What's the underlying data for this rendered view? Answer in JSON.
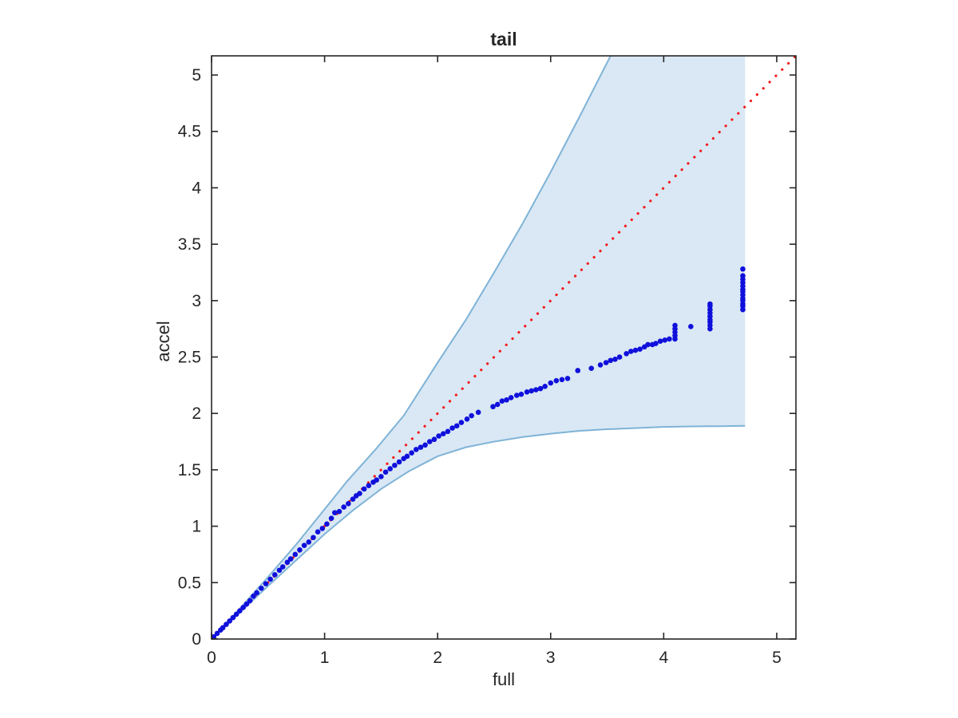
{
  "figure": {
    "background": "#FFFFFF"
  },
  "chart_data": {
    "type": "scatter",
    "title": "tail",
    "xlabel": "full",
    "ylabel": "accel",
    "xlim": [
      0,
      5.17
    ],
    "ylim": [
      0,
      5.17
    ],
    "x_ticks": [
      0,
      1,
      2,
      3,
      4,
      5
    ],
    "y_ticks": [
      0,
      0.5,
      1,
      1.5,
      2,
      2.5,
      3,
      3.5,
      4,
      4.5,
      5
    ],
    "grid": false,
    "legend": "none",
    "colors": {
      "band_fill": "#D9E8F4",
      "band_edge": "#7FB3D7",
      "scatter": "#1010DC",
      "reference_line": "#F21B1B",
      "axis": "#262626"
    },
    "series": [
      {
        "name": "qq-scatter",
        "type": "scatter",
        "marker": "dot",
        "color": "#1010DC",
        "points": [
          [
            0.02,
            0.02
          ],
          [
            0.05,
            0.05
          ],
          [
            0.08,
            0.08
          ],
          [
            0.1,
            0.1
          ],
          [
            0.13,
            0.13
          ],
          [
            0.16,
            0.16
          ],
          [
            0.19,
            0.19
          ],
          [
            0.22,
            0.22
          ],
          [
            0.25,
            0.25
          ],
          [
            0.28,
            0.28
          ],
          [
            0.31,
            0.31
          ],
          [
            0.34,
            0.34
          ],
          [
            0.37,
            0.38
          ],
          [
            0.4,
            0.41
          ],
          [
            0.44,
            0.45
          ],
          [
            0.48,
            0.49
          ],
          [
            0.52,
            0.53
          ],
          [
            0.56,
            0.57
          ],
          [
            0.6,
            0.61
          ],
          [
            0.63,
            0.64
          ],
          [
            0.67,
            0.68
          ],
          [
            0.7,
            0.71
          ],
          [
            0.74,
            0.75
          ],
          [
            0.78,
            0.79
          ],
          [
            0.82,
            0.83
          ],
          [
            0.86,
            0.86
          ],
          [
            0.9,
            0.9
          ],
          [
            0.94,
            0.95
          ],
          [
            0.98,
            0.98
          ],
          [
            1.02,
            1.02
          ],
          [
            1.06,
            1.07
          ],
          [
            1.09,
            1.12
          ],
          [
            1.13,
            1.13
          ],
          [
            1.17,
            1.17
          ],
          [
            1.21,
            1.2
          ],
          [
            1.25,
            1.24
          ],
          [
            1.28,
            1.27
          ],
          [
            1.31,
            1.29
          ],
          [
            1.35,
            1.33
          ],
          [
            1.39,
            1.36
          ],
          [
            1.43,
            1.39
          ],
          [
            1.46,
            1.41
          ],
          [
            1.5,
            1.44
          ],
          [
            1.54,
            1.48
          ],
          [
            1.58,
            1.51
          ],
          [
            1.62,
            1.54
          ],
          [
            1.66,
            1.57
          ],
          [
            1.7,
            1.6
          ],
          [
            1.73,
            1.62
          ],
          [
            1.77,
            1.65
          ],
          [
            1.81,
            1.68
          ],
          [
            1.85,
            1.7
          ],
          [
            1.89,
            1.72
          ],
          [
            1.93,
            1.75
          ],
          [
            1.97,
            1.77
          ],
          [
            2.01,
            1.8
          ],
          [
            2.05,
            1.82
          ],
          [
            2.09,
            1.84
          ],
          [
            2.13,
            1.87
          ],
          [
            2.17,
            1.89
          ],
          [
            2.21,
            1.92
          ],
          [
            2.26,
            1.95
          ],
          [
            2.3,
            1.98
          ],
          [
            2.36,
            2.01
          ],
          [
            2.49,
            2.06
          ],
          [
            2.53,
            2.08
          ],
          [
            2.57,
            2.11
          ],
          [
            2.61,
            2.12
          ],
          [
            2.65,
            2.14
          ],
          [
            2.7,
            2.16
          ],
          [
            2.74,
            2.17
          ],
          [
            2.79,
            2.19
          ],
          [
            2.83,
            2.2
          ],
          [
            2.87,
            2.21
          ],
          [
            2.91,
            2.22
          ],
          [
            2.95,
            2.24
          ],
          [
            3.0,
            2.27
          ],
          [
            3.05,
            2.29
          ],
          [
            3.1,
            2.3
          ],
          [
            3.15,
            2.31
          ],
          [
            3.24,
            2.38
          ],
          [
            3.36,
            2.4
          ],
          [
            3.44,
            2.43
          ],
          [
            3.49,
            2.45
          ],
          [
            3.53,
            2.47
          ],
          [
            3.57,
            2.48
          ],
          [
            3.61,
            2.5
          ],
          [
            3.67,
            2.53
          ],
          [
            3.71,
            2.55
          ],
          [
            3.75,
            2.56
          ],
          [
            3.79,
            2.57
          ],
          [
            3.83,
            2.59
          ],
          [
            3.86,
            2.61
          ],
          [
            3.9,
            2.61
          ],
          [
            3.93,
            2.62
          ],
          [
            3.97,
            2.64
          ],
          [
            4.01,
            2.65
          ],
          [
            4.05,
            2.66
          ],
          [
            4.1,
            2.66
          ],
          [
            4.1,
            2.69
          ],
          [
            4.1,
            2.72
          ],
          [
            4.1,
            2.75
          ],
          [
            4.1,
            2.78
          ],
          [
            4.24,
            2.77
          ],
          [
            4.41,
            2.75
          ],
          [
            4.41,
            2.78
          ],
          [
            4.41,
            2.81
          ],
          [
            4.41,
            2.83
          ],
          [
            4.41,
            2.86
          ],
          [
            4.41,
            2.89
          ],
          [
            4.41,
            2.92
          ],
          [
            4.41,
            2.95
          ],
          [
            4.41,
            2.97
          ],
          [
            4.7,
            2.92
          ],
          [
            4.7,
            2.95
          ],
          [
            4.7,
            2.97
          ],
          [
            4.7,
            3.0
          ],
          [
            4.7,
            3.02
          ],
          [
            4.7,
            3.05
          ],
          [
            4.7,
            3.08
          ],
          [
            4.7,
            3.1
          ],
          [
            4.7,
            3.13
          ],
          [
            4.7,
            3.16
          ],
          [
            4.7,
            3.19
          ],
          [
            4.7,
            3.22
          ],
          [
            4.7,
            3.28
          ]
        ]
      },
      {
        "name": "identity-reference-line",
        "type": "dotted-line",
        "color": "#F21B1B",
        "points": [
          [
            0,
            0
          ],
          [
            5.17,
            5.17
          ]
        ]
      },
      {
        "name": "confidence-band",
        "type": "band",
        "fill": "#D9E8F4",
        "edge": "#7FB3D7",
        "x_cutoff": 4.72,
        "upper": [
          [
            0,
            0
          ],
          [
            0.25,
            0.27
          ],
          [
            0.5,
            0.55
          ],
          [
            0.75,
            0.84
          ],
          [
            1,
            1.15
          ],
          [
            1.2,
            1.4
          ],
          [
            1.45,
            1.68
          ],
          [
            1.7,
            1.98
          ],
          [
            2,
            2.45
          ],
          [
            2.25,
            2.83
          ],
          [
            2.5,
            3.25
          ],
          [
            2.75,
            3.68
          ],
          [
            3,
            4.14
          ],
          [
            3.25,
            4.62
          ],
          [
            3.53,
            5.17
          ],
          [
            3.62,
            5.35
          ]
        ],
        "lower": [
          [
            0,
            0
          ],
          [
            0.25,
            0.235
          ],
          [
            0.5,
            0.47
          ],
          [
            0.75,
            0.7
          ],
          [
            1,
            0.93
          ],
          [
            1.25,
            1.14
          ],
          [
            1.5,
            1.33
          ],
          [
            1.75,
            1.49
          ],
          [
            2,
            1.62
          ],
          [
            2.25,
            1.7
          ],
          [
            2.5,
            1.75
          ],
          [
            2.75,
            1.79
          ],
          [
            3,
            1.82
          ],
          [
            3.25,
            1.845
          ],
          [
            3.5,
            1.86
          ],
          [
            3.75,
            1.87
          ],
          [
            4,
            1.88
          ],
          [
            4.25,
            1.885
          ],
          [
            4.5,
            1.887
          ],
          [
            4.72,
            1.89
          ]
        ]
      }
    ]
  }
}
